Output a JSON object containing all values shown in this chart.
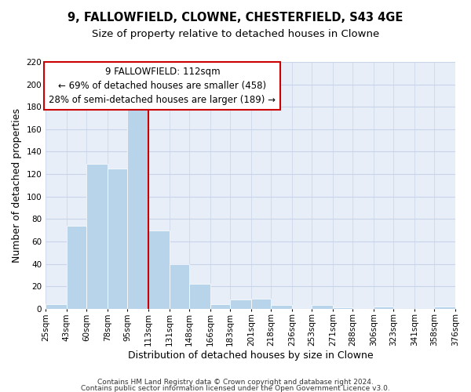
{
  "title": "9, FALLOWFIELD, CLOWNE, CHESTERFIELD, S43 4GE",
  "subtitle": "Size of property relative to detached houses in Clowne",
  "xlabel": "Distribution of detached houses by size in Clowne",
  "ylabel": "Number of detached properties",
  "bar_color": "#b8d4ea",
  "grid_color": "#c8d4e8",
  "vline_color": "#cc0000",
  "vline_x": 113,
  "bin_edges": [
    25,
    43,
    60,
    78,
    95,
    113,
    131,
    148,
    166,
    183,
    201,
    218,
    236,
    253,
    271,
    288,
    306,
    323,
    341,
    358,
    376
  ],
  "bin_counts": [
    4,
    74,
    129,
    125,
    180,
    70,
    40,
    22,
    4,
    8,
    9,
    3,
    0,
    3,
    1,
    0,
    2,
    0,
    0,
    2
  ],
  "ylim": [
    0,
    220
  ],
  "yticks": [
    0,
    20,
    40,
    60,
    80,
    100,
    120,
    140,
    160,
    180,
    200,
    220
  ],
  "x_tick_labels": [
    "25sqm",
    "43sqm",
    "60sqm",
    "78sqm",
    "95sqm",
    "113sqm",
    "131sqm",
    "148sqm",
    "166sqm",
    "183sqm",
    "201sqm",
    "218sqm",
    "236sqm",
    "253sqm",
    "271sqm",
    "288sqm",
    "306sqm",
    "323sqm",
    "341sqm",
    "358sqm",
    "376sqm"
  ],
  "annotation_title": "9 FALLOWFIELD: 112sqm",
  "annotation_line1": "← 69% of detached houses are smaller (458)",
  "annotation_line2": "28% of semi-detached houses are larger (189) →",
  "annotation_box_color": "#ffffff",
  "annotation_box_edge_color": "#cc0000",
  "footnote1": "Contains HM Land Registry data © Crown copyright and database right 2024.",
  "footnote2": "Contains public sector information licensed under the Open Government Licence v3.0.",
  "title_fontsize": 10.5,
  "subtitle_fontsize": 9.5,
  "axis_label_fontsize": 9,
  "tick_fontsize": 7.5,
  "annotation_fontsize": 8.5,
  "footnote_fontsize": 6.5,
  "bg_color": "#e8eef8"
}
